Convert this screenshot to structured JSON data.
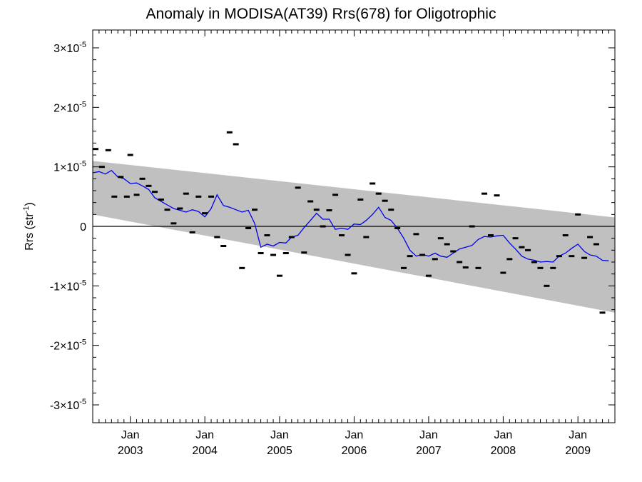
{
  "chart_data": {
    "type": "line",
    "title": "Anomaly in MODISA(AT39) Rrs(678) for Oligotrophic",
    "ylabel": "Rrs (str",
    "ylabel_exp": "-1",
    "ylabel_close": ")",
    "xlim": [
      "2002-07-01",
      "2009-07-01"
    ],
    "ylim": [
      -3.3e-05,
      3.3e-05
    ],
    "yticks": [
      {
        "value": 3e-05,
        "label": "3×10",
        "exp": "-5"
      },
      {
        "value": 2e-05,
        "label": "2×10",
        "exp": "-5"
      },
      {
        "value": 1e-05,
        "label": "1×10",
        "exp": "-5"
      },
      {
        "value": 0,
        "label": "0",
        "exp": ""
      },
      {
        "value": -1e-05,
        "label": "-1×10",
        "exp": "-5"
      },
      {
        "value": -2e-05,
        "label": "-2×10",
        "exp": "-5"
      },
      {
        "value": -3e-05,
        "label": "-3×10",
        "exp": "-5"
      }
    ],
    "xticks": [
      {
        "date": "2003-01-01",
        "month": "Jan",
        "year": "2003"
      },
      {
        "date": "2004-01-01",
        "month": "Jan",
        "year": "2004"
      },
      {
        "date": "2005-01-01",
        "month": "Jan",
        "year": "2005"
      },
      {
        "date": "2006-01-01",
        "month": "Jan",
        "year": "2006"
      },
      {
        "date": "2007-01-01",
        "month": "Jan",
        "year": "2007"
      },
      {
        "date": "2008-01-01",
        "month": "Jan",
        "year": "2008"
      },
      {
        "date": "2009-01-01",
        "month": "Jan",
        "year": "2009"
      }
    ],
    "band": {
      "start": "2002-07-01",
      "end": "2009-07-01",
      "upper": [
        1.1e-05,
        1.5e-06
      ],
      "lower": [
        2e-06,
        -1.45e-05
      ],
      "color": "#c0c0c0"
    },
    "zero_line": true,
    "colors": {
      "smoothed": "#0000ee",
      "monthly": "#000000"
    },
    "series": [
      {
        "style": "dash-markers",
        "points": [
          [
            "2002-07-15",
            1.3e-05
          ],
          [
            "2002-08-15",
            1e-05
          ],
          [
            "2002-09-15",
            1.28e-05
          ],
          [
            "2002-10-15",
            5e-06
          ],
          [
            "2002-11-15",
            8.3e-06
          ],
          [
            "2002-12-15",
            5e-06
          ],
          [
            "2003-01-01",
            1.2e-05
          ],
          [
            "2003-02-01",
            5.3e-06
          ],
          [
            "2003-03-01",
            8e-06
          ],
          [
            "2003-04-01",
            6.8e-06
          ],
          [
            "2003-05-01",
            5.8e-06
          ],
          [
            "2003-06-01",
            4.5e-06
          ],
          [
            "2003-07-01",
            2.8e-06
          ],
          [
            "2003-08-01",
            5e-07
          ],
          [
            "2003-09-01",
            3e-06
          ],
          [
            "2003-10-01",
            5.5e-06
          ],
          [
            "2003-11-01",
            -1e-06
          ],
          [
            "2003-12-01",
            5e-06
          ],
          [
            "2004-01-01",
            2.2e-06
          ],
          [
            "2004-02-01",
            5e-06
          ],
          [
            "2004-03-01",
            -1.8e-06
          ],
          [
            "2004-04-01",
            -3.3e-06
          ],
          [
            "2004-05-01",
            1.58e-05
          ],
          [
            "2004-06-01",
            1.38e-05
          ],
          [
            "2004-07-01",
            -7e-06
          ],
          [
            "2004-08-01",
            -3e-07
          ],
          [
            "2004-09-01",
            2.8e-06
          ],
          [
            "2004-10-01",
            -4.5e-06
          ],
          [
            "2004-11-01",
            -1.5e-06
          ],
          [
            "2004-12-01",
            -4.8e-06
          ],
          [
            "2005-01-01",
            -8.3e-06
          ],
          [
            "2005-02-01",
            -4.5e-06
          ],
          [
            "2005-03-01",
            -1.8e-06
          ],
          [
            "2005-04-01",
            6.5e-06
          ],
          [
            "2005-05-01",
            -4.4e-06
          ],
          [
            "2005-06-01",
            4.2e-06
          ],
          [
            "2005-07-01",
            2.8e-06
          ],
          [
            "2005-08-01",
            0.0
          ],
          [
            "2005-09-01",
            2.7e-06
          ],
          [
            "2005-10-01",
            5.3e-06
          ],
          [
            "2005-11-01",
            -1.5e-06
          ],
          [
            "2005-12-01",
            -4.8e-06
          ],
          [
            "2006-01-01",
            -7.9e-06
          ],
          [
            "2006-02-01",
            4.5e-06
          ],
          [
            "2006-03-01",
            -1.8e-06
          ],
          [
            "2006-04-01",
            7.2e-06
          ],
          [
            "2006-05-01",
            5.5e-06
          ],
          [
            "2006-06-01",
            4.3e-06
          ],
          [
            "2006-07-01",
            2.8e-06
          ],
          [
            "2006-08-01",
            -3e-07
          ],
          [
            "2006-09-01",
            -7e-06
          ],
          [
            "2006-10-01",
            -5e-06
          ],
          [
            "2006-11-01",
            -1.3e-06
          ],
          [
            "2006-12-01",
            -4.8e-06
          ],
          [
            "2007-01-01",
            -8.3e-06
          ],
          [
            "2007-02-01",
            -5.5e-06
          ],
          [
            "2007-03-01",
            -2e-06
          ],
          [
            "2007-04-01",
            -3e-06
          ],
          [
            "2007-05-01",
            -4.2e-06
          ],
          [
            "2007-06-01",
            -6e-06
          ],
          [
            "2007-07-01",
            -6.9e-06
          ],
          [
            "2007-08-01",
            0.0
          ],
          [
            "2007-09-01",
            -7e-06
          ],
          [
            "2007-10-01",
            5.5e-06
          ],
          [
            "2007-11-01",
            -1.5e-06
          ],
          [
            "2007-12-01",
            5.2e-06
          ],
          [
            "2008-01-01",
            -7.8e-06
          ],
          [
            "2008-02-01",
            -5.5e-06
          ],
          [
            "2008-03-01",
            -2e-06
          ],
          [
            "2008-04-01",
            -3.5e-06
          ],
          [
            "2008-05-01",
            -4e-06
          ],
          [
            "2008-06-01",
            -6e-06
          ],
          [
            "2008-07-01",
            -7e-06
          ],
          [
            "2008-08-01",
            -1e-05
          ],
          [
            "2008-09-01",
            -7e-06
          ],
          [
            "2008-10-01",
            -5e-06
          ],
          [
            "2008-11-01",
            -1.5e-06
          ],
          [
            "2008-12-01",
            -5e-06
          ],
          [
            "2009-01-01",
            2e-06
          ],
          [
            "2009-02-01",
            -5.3e-06
          ],
          [
            "2009-03-01",
            -1.8e-06
          ],
          [
            "2009-04-01",
            -3e-06
          ],
          [
            "2009-05-01",
            -1.45e-05
          ]
        ]
      },
      {
        "style": "line",
        "points": [
          [
            "2002-07-01",
            9e-06
          ],
          [
            "2002-08-01",
            9.2e-06
          ],
          [
            "2002-09-01",
            8.8e-06
          ],
          [
            "2002-10-01",
            9.4e-06
          ],
          [
            "2002-11-01",
            8.3e-06
          ],
          [
            "2002-12-01",
            8e-06
          ],
          [
            "2003-01-01",
            7.2e-06
          ],
          [
            "2003-02-01",
            7.3e-06
          ],
          [
            "2003-03-01",
            6.8e-06
          ],
          [
            "2003-04-01",
            6.2e-06
          ],
          [
            "2003-05-01",
            4.8e-06
          ],
          [
            "2003-06-01",
            4.2e-06
          ],
          [
            "2003-07-01",
            3.6e-06
          ],
          [
            "2003-08-01",
            3e-06
          ],
          [
            "2003-09-01",
            2.7e-06
          ],
          [
            "2003-10-01",
            2.4e-06
          ],
          [
            "2003-11-01",
            2.8e-06
          ],
          [
            "2003-12-01",
            2.5e-06
          ],
          [
            "2004-01-01",
            1.6e-06
          ],
          [
            "2004-02-01",
            3e-06
          ],
          [
            "2004-03-01",
            5.3e-06
          ],
          [
            "2004-04-01",
            3.5e-06
          ],
          [
            "2004-05-01",
            3.2e-06
          ],
          [
            "2004-06-01",
            2.8e-06
          ],
          [
            "2004-07-01",
            2.4e-06
          ],
          [
            "2004-08-01",
            2.7e-06
          ],
          [
            "2004-09-01",
            5e-07
          ],
          [
            "2004-10-01",
            -3.5e-06
          ],
          [
            "2004-11-01",
            -3e-06
          ],
          [
            "2004-12-01",
            -3.3e-06
          ],
          [
            "2005-01-01",
            -2.7e-06
          ],
          [
            "2005-02-01",
            -2.8e-06
          ],
          [
            "2005-03-01",
            -1.8e-06
          ],
          [
            "2005-04-01",
            -1.5e-06
          ],
          [
            "2005-05-01",
            -2e-07
          ],
          [
            "2005-06-01",
            1e-06
          ],
          [
            "2005-07-01",
            2.2e-06
          ],
          [
            "2005-08-01",
            1.2e-06
          ],
          [
            "2005-09-01",
            1.2e-06
          ],
          [
            "2005-10-01",
            -5e-07
          ],
          [
            "2005-11-01",
            -3e-07
          ],
          [
            "2005-12-01",
            -5e-07
          ],
          [
            "2006-01-01",
            4e-07
          ],
          [
            "2006-02-01",
            3e-07
          ],
          [
            "2006-03-01",
            1e-06
          ],
          [
            "2006-04-01",
            2e-06
          ],
          [
            "2006-05-01",
            3.2e-06
          ],
          [
            "2006-06-01",
            1.5e-06
          ],
          [
            "2006-07-01",
            1e-06
          ],
          [
            "2006-08-01",
            -3e-07
          ],
          [
            "2006-09-01",
            -2e-06
          ],
          [
            "2006-10-01",
            -4e-06
          ],
          [
            "2006-11-01",
            -5e-06
          ],
          [
            "2006-12-01",
            -4.7e-06
          ],
          [
            "2007-01-01",
            -5e-06
          ],
          [
            "2007-02-01",
            -4.5e-06
          ],
          [
            "2007-03-01",
            -5e-06
          ],
          [
            "2007-04-01",
            -5.2e-06
          ],
          [
            "2007-05-01",
            -4.5e-06
          ],
          [
            "2007-06-01",
            -3.8e-06
          ],
          [
            "2007-07-01",
            -3.5e-06
          ],
          [
            "2007-08-01",
            -3.2e-06
          ],
          [
            "2007-09-01",
            -2.2e-06
          ],
          [
            "2007-10-01",
            -1.7e-06
          ],
          [
            "2007-11-01",
            -1.8e-06
          ],
          [
            "2007-12-01",
            -1.6e-06
          ],
          [
            "2008-01-01",
            -1.5e-06
          ],
          [
            "2008-02-01",
            -2.8e-06
          ],
          [
            "2008-03-01",
            -3.8e-06
          ],
          [
            "2008-04-01",
            -5e-06
          ],
          [
            "2008-05-01",
            -5.5e-06
          ],
          [
            "2008-06-01",
            -5.7e-06
          ],
          [
            "2008-07-01",
            -6e-06
          ],
          [
            "2008-08-01",
            -5.9e-06
          ],
          [
            "2008-09-01",
            -6e-06
          ],
          [
            "2008-10-01",
            -5e-06
          ],
          [
            "2008-11-01",
            -4.5e-06
          ],
          [
            "2008-12-01",
            -3.7e-06
          ],
          [
            "2009-01-01",
            -3e-06
          ],
          [
            "2009-02-01",
            -4.2e-06
          ],
          [
            "2009-03-01",
            -4.8e-06
          ],
          [
            "2009-04-01",
            -5e-06
          ],
          [
            "2009-05-01",
            -5.7e-06
          ],
          [
            "2009-06-01",
            -5.8e-06
          ]
        ]
      }
    ],
    "grid": false,
    "legend": "none"
  }
}
